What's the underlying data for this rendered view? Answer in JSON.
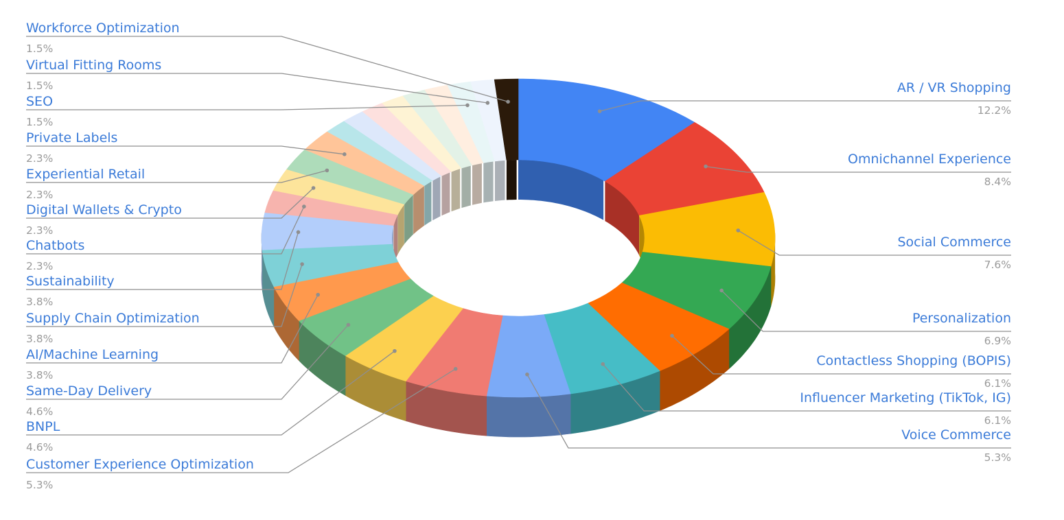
{
  "chart_data": {
    "type": "pie",
    "variant": "3d-donut",
    "title": "",
    "legend": "none",
    "slices": [
      {
        "label": "AR / VR Shopping",
        "value": 12.2,
        "value_label": "12.2%",
        "color": "#4285f4",
        "side": "right"
      },
      {
        "label": "Omnichannel Experience",
        "value": 8.4,
        "value_label": "8.4%",
        "color": "#ea4335",
        "side": "right"
      },
      {
        "label": "Social Commerce",
        "value": 7.6,
        "value_label": "7.6%",
        "color": "#fbbc04",
        "side": "right"
      },
      {
        "label": "Personalization",
        "value": 6.9,
        "value_label": "6.9%",
        "color": "#34a853",
        "side": "right"
      },
      {
        "label": "Contactless Shopping (BOPIS)",
        "value": 6.1,
        "value_label": "6.1%",
        "color": "#ff6d01",
        "side": "right"
      },
      {
        "label": "Influencer Marketing (TikTok, IG)",
        "value": 6.1,
        "value_label": "6.1%",
        "color": "#46bdc6",
        "side": "right"
      },
      {
        "label": "Voice Commerce",
        "value": 5.3,
        "value_label": "5.3%",
        "color": "#7baaf7",
        "side": "right"
      },
      {
        "label": "Customer Experience Optimization",
        "value": 5.3,
        "value_label": "5.3%",
        "color": "#f07b72",
        "side": "left"
      },
      {
        "label": "BNPL",
        "value": 4.6,
        "value_label": "4.6%",
        "color": "#fcd04f",
        "side": "left"
      },
      {
        "label": "Same-Day Delivery",
        "value": 4.6,
        "value_label": "4.6%",
        "color": "#71c287",
        "side": "left"
      },
      {
        "label": "AI/Machine Learning",
        "value": 3.8,
        "value_label": "3.8%",
        "color": "#ff994d",
        "side": "left"
      },
      {
        "label": "Supply Chain Optimization",
        "value": 3.8,
        "value_label": "3.8%",
        "color": "#7ed1d7",
        "side": "left"
      },
      {
        "label": "Sustainability",
        "value": 3.8,
        "value_label": "3.8%",
        "color": "#b3cefb",
        "side": "left"
      },
      {
        "label": "Chatbots",
        "value": 2.3,
        "value_label": "2.3%",
        "color": "#f7b4ae",
        "side": "left"
      },
      {
        "label": "Digital Wallets & Crypto",
        "value": 2.3,
        "value_label": "2.3%",
        "color": "#fde49b",
        "side": "left"
      },
      {
        "label": "Experiential Retail",
        "value": 2.3,
        "value_label": "2.3%",
        "color": "#aedcba",
        "side": "left"
      },
      {
        "label": "Private Labels",
        "value": 2.3,
        "value_label": "2.3%",
        "color": "#ffc599",
        "side": "left"
      },
      {
        "label": "",
        "value": 1.5,
        "value_label": "",
        "color": "#b8e6ea",
        "side": "none"
      },
      {
        "label": "",
        "value": 1.5,
        "value_label": "",
        "color": "#dde8fb",
        "side": "none"
      },
      {
        "label": "",
        "value": 1.5,
        "value_label": "",
        "color": "#fde0de",
        "side": "none"
      },
      {
        "label": "",
        "value": 1.5,
        "value_label": "",
        "color": "#fef3d4",
        "side": "none"
      },
      {
        "label": "",
        "value": 1.5,
        "value_label": "",
        "color": "#e3f2e7",
        "side": "none"
      },
      {
        "label": "",
        "value": 1.5,
        "value_label": "",
        "color": "#ffeee0",
        "side": "none"
      },
      {
        "label": "SEO",
        "value": 1.5,
        "value_label": "1.5%",
        "color": "#e8f6f7",
        "side": "left"
      },
      {
        "label": "Virtual Fitting Rooms",
        "value": 1.5,
        "value_label": "1.5%",
        "color": "#eef4fd",
        "side": "left"
      },
      {
        "label": "Workforce Optimization",
        "value": 1.5,
        "value_label": "1.5%",
        "color": "#2b1a0a",
        "side": "left"
      }
    ]
  }
}
